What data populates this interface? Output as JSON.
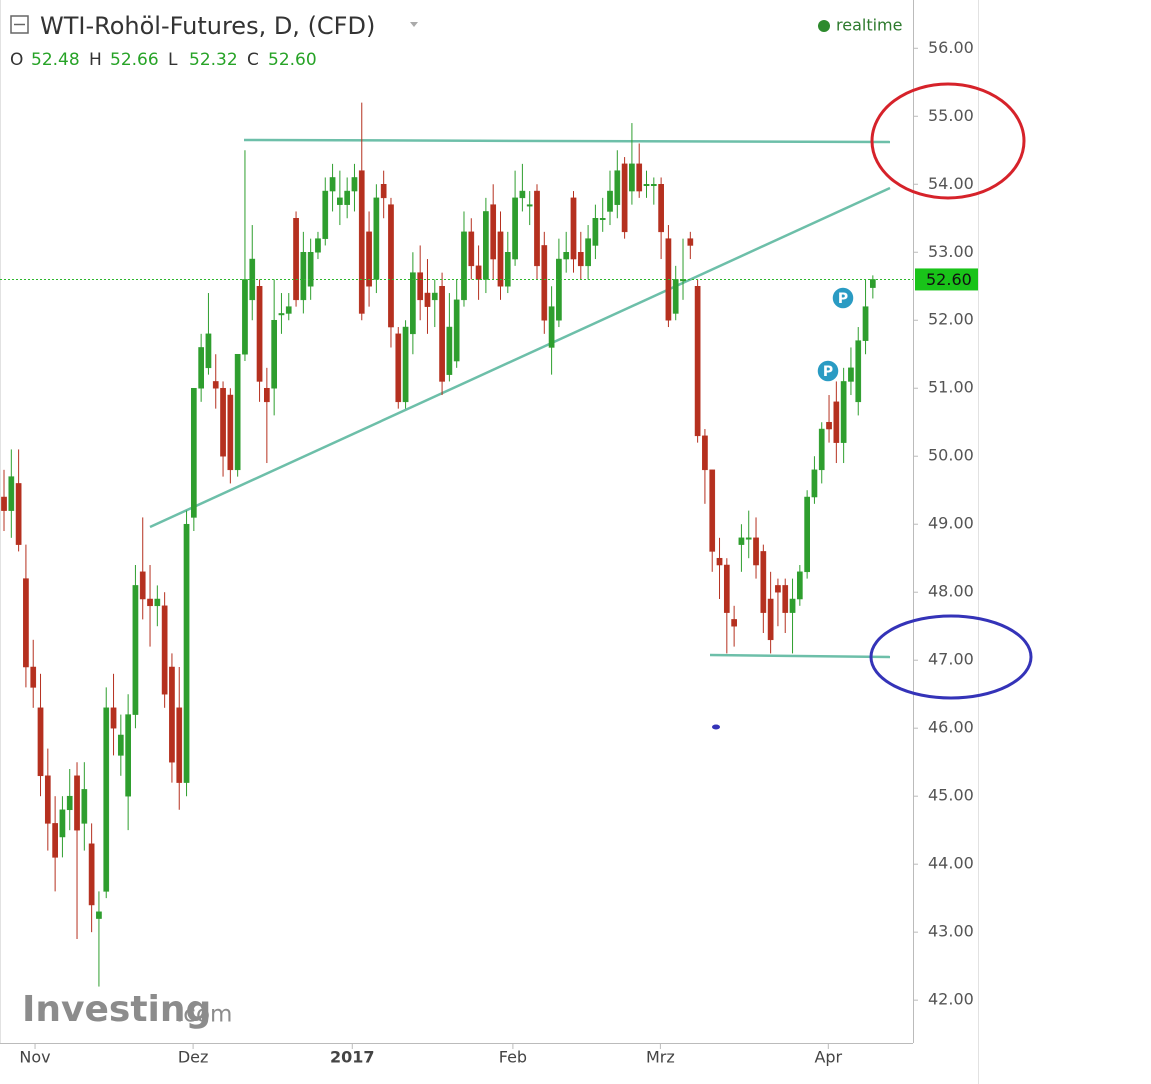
{
  "chart_data": {
    "type": "candlestick",
    "title": "WTI-Rohöl-Futures, D, (CFD)",
    "status": "realtime",
    "ohlc_header": [
      {
        "name": "O",
        "label": "52.48"
      },
      {
        "name": "H",
        "label": "52.66"
      },
      {
        "name": "L",
        "label": "52.32"
      },
      {
        "name": "C",
        "label": "52.60"
      }
    ],
    "last_price": 52.6,
    "last_price_label": "52.60",
    "markers": [
      "P",
      "P"
    ],
    "watermark": {
      "brand": "Investing",
      "suffix": ".com"
    },
    "up_color": "#2e9e2e",
    "down_color": "#b5301f",
    "ylim": [
      41.37,
      56.71
    ],
    "yticks": [
      {
        "value": 42,
        "label": "42.00"
      },
      {
        "value": 43,
        "label": "43.00"
      },
      {
        "value": 44,
        "label": "44.00"
      },
      {
        "value": 45,
        "label": "45.00"
      },
      {
        "value": 46,
        "label": "46.00"
      },
      {
        "value": 47,
        "label": "47.00"
      },
      {
        "value": 48,
        "label": "48.00"
      },
      {
        "value": 49,
        "label": "49.00"
      },
      {
        "value": 50,
        "label": "50.00"
      },
      {
        "value": 51,
        "label": "51.00"
      },
      {
        "value": 52,
        "label": "52.00"
      },
      {
        "value": 53,
        "label": "53.00"
      },
      {
        "value": 54,
        "label": "54.00"
      },
      {
        "value": 55,
        "label": "55.00"
      },
      {
        "value": 56,
        "label": "56.00"
      }
    ],
    "xlim": [
      -0.55,
      124.5
    ],
    "xticks": [
      {
        "value": 4.25,
        "label": "Nov"
      },
      {
        "value": 25.9,
        "label": "Dez"
      },
      {
        "value": 47.7,
        "label": "2017"
      },
      {
        "value": 69.7,
        "label": "Feb"
      },
      {
        "value": 89.9,
        "label": "Mrz"
      },
      {
        "value": 112.9,
        "label": "Apr"
      }
    ],
    "open": [
      49.4,
      49.2,
      49.6,
      48.2,
      46.9,
      46.3,
      45.3,
      44.6,
      44.4,
      44.8,
      45.3,
      44.6,
      44.3,
      43.2,
      43.6,
      46.3,
      45.6,
      45.0,
      46.2,
      48.3,
      47.9,
      47.8,
      47.8,
      46.9,
      46.3,
      45.2,
      49.1,
      51.0,
      51.3,
      51.1,
      51.0,
      50.9,
      49.8,
      51.5,
      52.3,
      52.5,
      51.0,
      51.0,
      52.1,
      52.1,
      53.5,
      52.3,
      52.5,
      53.0,
      53.2,
      53.9,
      53.7,
      53.7,
      53.9,
      54.2,
      53.3,
      52.6,
      54.0,
      53.7,
      51.8,
      50.8,
      51.8,
      52.7,
      52.4,
      52.3,
      52.5,
      51.2,
      51.4,
      52.3,
      53.3,
      52.8,
      52.6,
      53.7,
      53.3,
      52.5,
      52.9,
      53.8,
      53.7,
      53.9,
      53.1,
      51.6,
      52.0,
      52.9,
      53.8,
      53.0,
      52.8,
      53.1,
      53.5,
      53.6,
      53.7,
      54.3,
      53.9,
      54.3,
      54.0,
      54.0,
      54.0,
      53.2,
      52.1,
      52.6,
      53.2,
      52.5,
      50.3,
      49.8,
      48.5,
      48.4,
      47.6,
      48.7,
      48.8,
      48.8,
      48.6,
      47.9,
      48.1,
      48.1,
      47.7,
      47.9,
      48.3,
      49.4,
      49.8,
      50.5,
      50.8,
      50.2,
      51.1,
      50.8,
      51.7,
      52.48
    ],
    "high": [
      49.8,
      50.1,
      50.1,
      48.7,
      47.3,
      46.8,
      45.7,
      45.0,
      45.0,
      45.4,
      45.5,
      45.5,
      44.6,
      43.6,
      46.6,
      46.8,
      46.2,
      46.5,
      48.4,
      49.1,
      48.4,
      48.1,
      48.0,
      47.1,
      46.9,
      49.2,
      51.0,
      51.8,
      52.4,
      51.5,
      51.1,
      51.0,
      51.5,
      54.5,
      53.4,
      52.6,
      51.3,
      52.6,
      52.4,
      52.4,
      53.6,
      53.3,
      53.2,
      53.3,
      54.1,
      54.3,
      54.2,
      54.1,
      54.3,
      55.2,
      53.6,
      54.0,
      54.2,
      53.8,
      51.9,
      52.0,
      53.0,
      53.1,
      52.9,
      52.6,
      52.7,
      52.4,
      52.6,
      53.6,
      53.5,
      53.1,
      53.8,
      54.0,
      53.6,
      53.3,
      54.2,
      54.3,
      53.9,
      54.0,
      53.3,
      52.5,
      53.2,
      53.3,
      53.9,
      53.3,
      53.4,
      53.7,
      53.8,
      54.2,
      54.5,
      54.4,
      54.9,
      54.6,
      54.2,
      54.1,
      54.1,
      53.4,
      52.8,
      53.2,
      53.3,
      52.6,
      50.4,
      49.8,
      48.8,
      48.5,
      47.8,
      49.0,
      49.2,
      49.1,
      48.7,
      48.3,
      48.2,
      48.2,
      48.2,
      48.4,
      49.5,
      50.0,
      50.5,
      50.9,
      51.1,
      51.3,
      51.6,
      51.9,
      52.6,
      52.66
    ],
    "low": [
      48.9,
      48.8,
      48.6,
      46.6,
      46.3,
      45.0,
      44.2,
      43.6,
      44.1,
      44.5,
      42.9,
      44.2,
      43.0,
      42.2,
      43.5,
      45.6,
      45.3,
      44.5,
      46.0,
      47.6,
      47.2,
      47.5,
      46.3,
      45.2,
      44.8,
      45.0,
      48.9,
      50.8,
      51.2,
      50.7,
      49.7,
      49.6,
      49.7,
      51.4,
      52.0,
      50.8,
      49.9,
      50.6,
      51.8,
      52.0,
      52.2,
      52.1,
      52.3,
      52.9,
      53.1,
      53.6,
      53.4,
      53.5,
      53.6,
      52.0,
      52.2,
      52.4,
      53.5,
      51.6,
      50.7,
      50.7,
      51.5,
      52.0,
      51.8,
      51.9,
      50.9,
      51.1,
      51.3,
      52.2,
      52.6,
      52.3,
      52.4,
      52.6,
      52.3,
      52.4,
      52.8,
      53.6,
      53.4,
      52.6,
      51.8,
      51.2,
      51.9,
      52.7,
      52.7,
      52.6,
      52.6,
      52.9,
      53.3,
      53.4,
      53.5,
      53.2,
      53.7,
      53.8,
      53.8,
      53.7,
      52.9,
      51.9,
      52.0,
      52.3,
      52.9,
      50.2,
      49.3,
      48.3,
      47.9,
      47.1,
      47.2,
      48.3,
      48.5,
      48.2,
      47.4,
      47.1,
      47.5,
      47.4,
      47.1,
      47.8,
      48.2,
      49.3,
      49.6,
      50.2,
      49.9,
      49.9,
      50.9,
      50.6,
      51.5,
      52.32
    ],
    "close": [
      49.2,
      49.7,
      48.7,
      46.9,
      46.6,
      45.3,
      44.6,
      44.1,
      44.8,
      45.0,
      44.5,
      45.1,
      43.4,
      43.3,
      46.3,
      46.0,
      45.9,
      46.2,
      48.1,
      47.9,
      47.8,
      47.9,
      46.5,
      45.5,
      45.2,
      49.0,
      51.0,
      51.6,
      51.8,
      51.0,
      50.0,
      49.8,
      51.5,
      52.6,
      52.9,
      51.1,
      50.8,
      52.0,
      52.1,
      52.2,
      52.3,
      53.0,
      53.0,
      53.2,
      53.9,
      54.1,
      53.8,
      53.9,
      54.1,
      52.1,
      52.5,
      53.8,
      53.8,
      51.9,
      50.8,
      51.9,
      52.7,
      52.3,
      52.2,
      52.4,
      51.1,
      51.9,
      52.3,
      53.3,
      52.8,
      52.6,
      53.6,
      52.9,
      52.5,
      53.0,
      53.8,
      53.9,
      53.7,
      52.8,
      52.0,
      52.2,
      52.9,
      53.0,
      52.9,
      52.8,
      53.2,
      53.5,
      53.5,
      53.9,
      54.2,
      53.3,
      54.3,
      53.9,
      54.0,
      54.0,
      53.3,
      52.0,
      52.6,
      52.6,
      53.1,
      50.3,
      49.8,
      48.6,
      48.4,
      47.7,
      47.5,
      48.8,
      48.8,
      48.4,
      47.7,
      47.3,
      48.0,
      47.7,
      47.9,
      48.3,
      49.4,
      49.8,
      50.4,
      50.4,
      50.2,
      51.1,
      51.3,
      51.7,
      52.2,
      52.6
    ]
  }
}
